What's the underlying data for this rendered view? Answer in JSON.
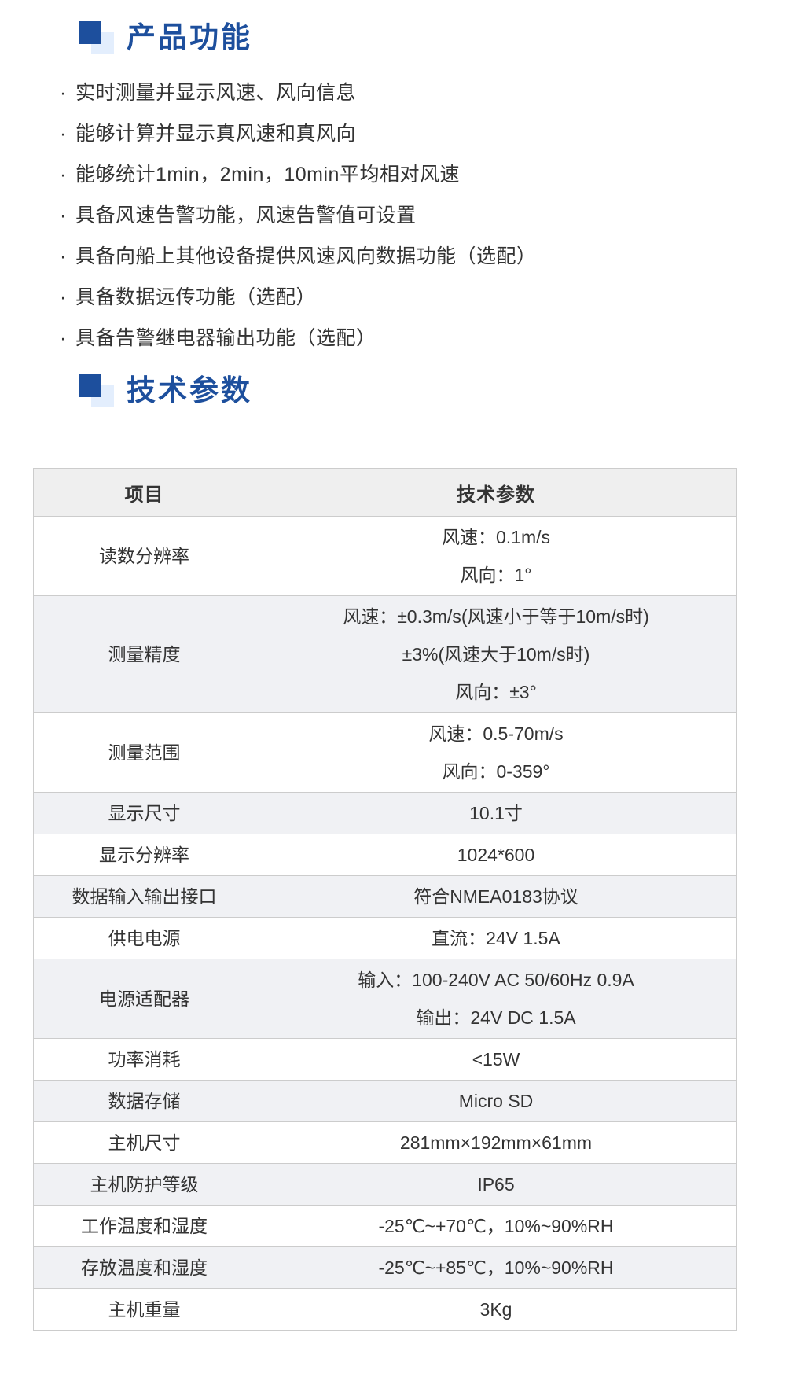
{
  "colors": {
    "accent": "#1d4f9d",
    "accent_light": "#e3eefd",
    "table_header_bg": "#efefef",
    "table_stripe_bg": "#f0f1f4",
    "table_border": "#cccccc",
    "text": "#333333"
  },
  "features": {
    "title": "产品功能",
    "bullet": "·",
    "items": [
      "实时测量并显示风速、风向信息",
      "能够计算并显示真风速和真风向",
      "能够统计1min，2min，10min平均相对风速",
      "具备风速告警功能，风速告警值可设置",
      "具备向船上其他设备提供风速风向数据功能（选配）",
      "具备数据远传功能（选配）",
      "具备告警继电器输出功能（选配）"
    ]
  },
  "specs": {
    "title": "技术参数",
    "table": {
      "headers": [
        "项目",
        "技术参数"
      ],
      "rows": [
        {
          "item": "读数分辨率",
          "value": [
            "风速：0.1m/s",
            "风向：1°"
          ]
        },
        {
          "item": "测量精度",
          "value": [
            "风速：±0.3m/s(风速小于等于10m/s时)",
            "±3%(风速大于10m/s时)",
            "风向：±3°"
          ]
        },
        {
          "item": "测量范围",
          "value": [
            "风速：0.5-70m/s",
            "风向：0-359°"
          ]
        },
        {
          "item": "显示尺寸",
          "value": [
            "10.1寸"
          ]
        },
        {
          "item": "显示分辨率",
          "value": [
            "1024*600"
          ]
        },
        {
          "item": "数据输入输出接口",
          "value": [
            "符合NMEA0183协议"
          ]
        },
        {
          "item": "供电电源",
          "value": [
            "直流：24V 1.5A"
          ]
        },
        {
          "item": "电源适配器",
          "value": [
            "输入：100-240V AC 50/60Hz 0.9A",
            "输出：24V DC 1.5A"
          ]
        },
        {
          "item": "功率消耗",
          "value": [
            "<15W"
          ]
        },
        {
          "item": "数据存储",
          "value": [
            "Micro SD"
          ]
        },
        {
          "item": "主机尺寸",
          "value": [
            "281mm×192mm×61mm"
          ]
        },
        {
          "item": "主机防护等级",
          "value": [
            "IP65"
          ]
        },
        {
          "item": "工作温度和湿度",
          "value": [
            "-25℃~+70℃，10%~90%RH"
          ]
        },
        {
          "item": "存放温度和湿度",
          "value": [
            "-25℃~+85℃，10%~90%RH"
          ]
        },
        {
          "item": "主机重量",
          "value": [
            "3Kg"
          ]
        }
      ]
    }
  }
}
